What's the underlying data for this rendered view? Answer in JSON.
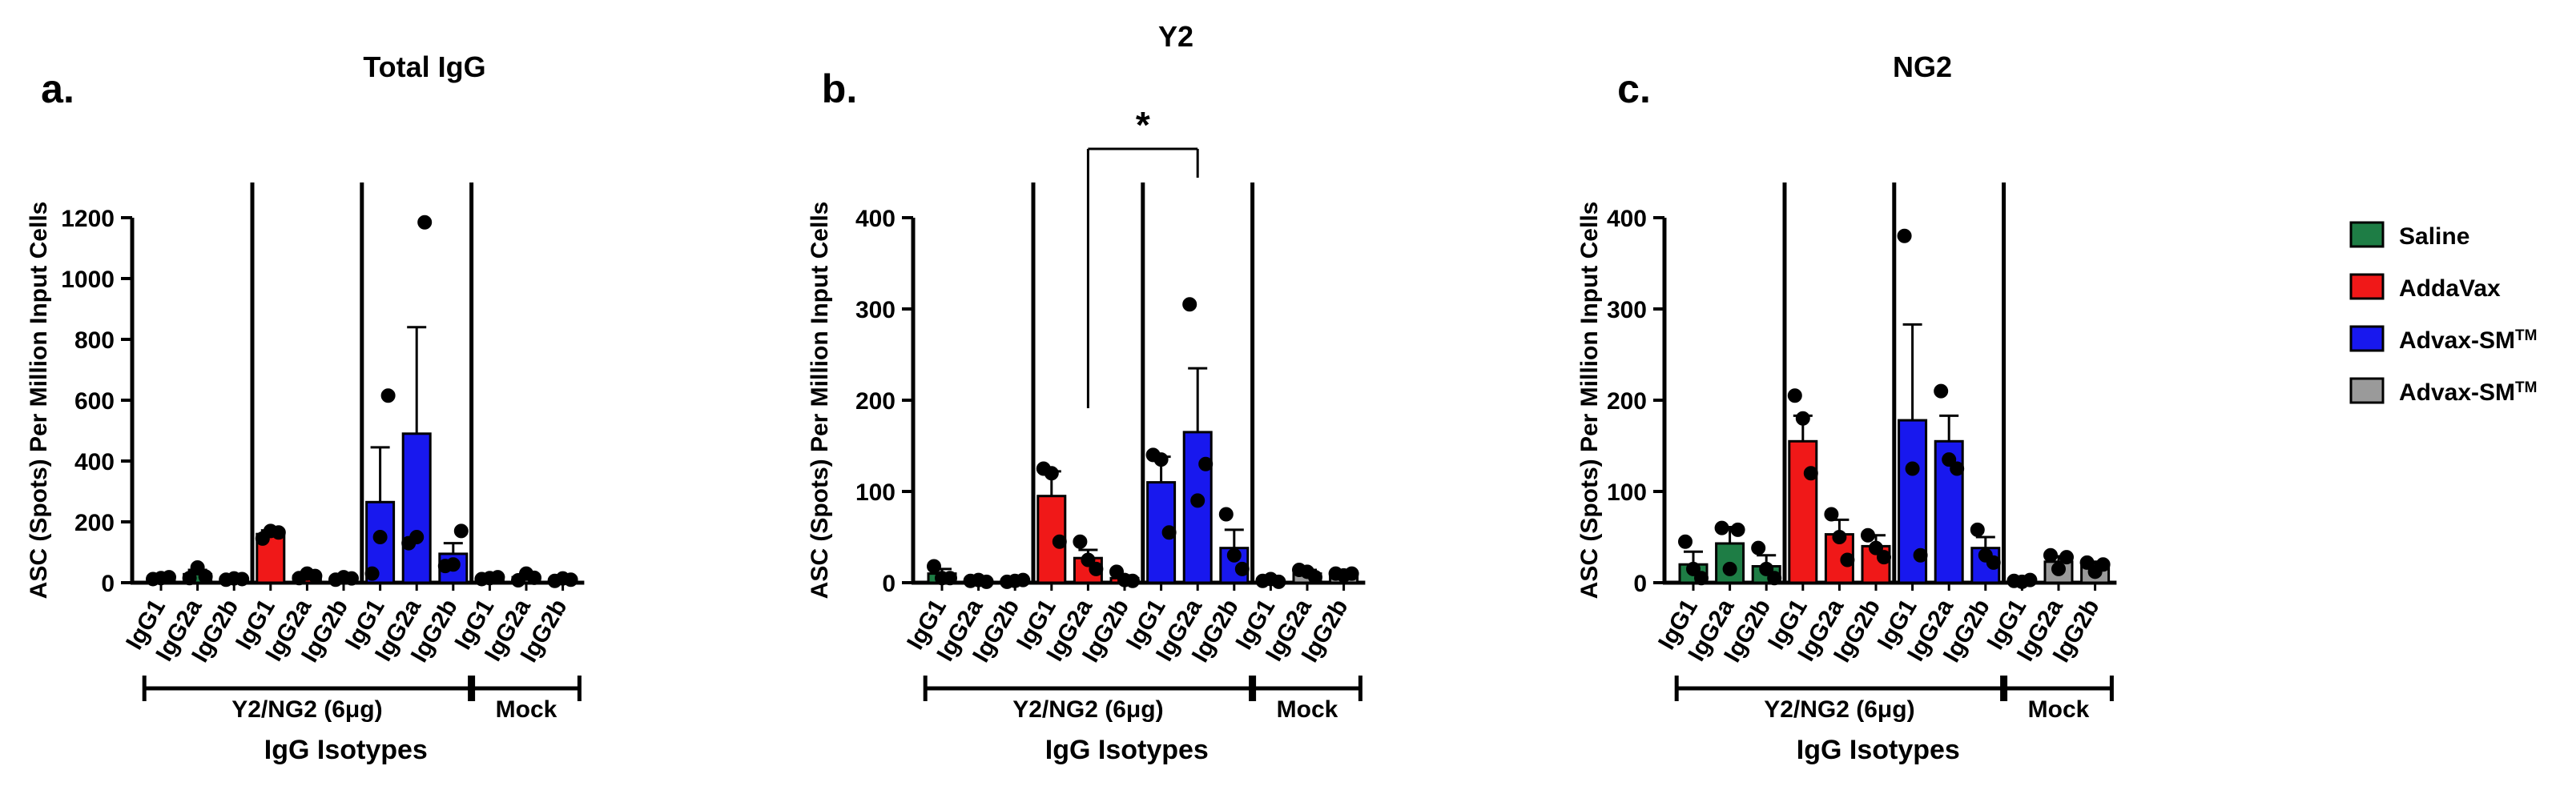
{
  "figure_title": "Y2",
  "colors": {
    "saline": "#1e7d45",
    "addavax": "#f01818",
    "advax": "#1818ee",
    "mock": "#9a9a9a"
  },
  "legend": [
    {
      "label": "Saline",
      "sup": "",
      "color_key": "saline"
    },
    {
      "label": "AddaVax",
      "sup": "",
      "color_key": "addavax"
    },
    {
      "label": "Advax-SM",
      "sup": "TM",
      "color_key": "advax"
    },
    {
      "label": "Advax-SM",
      "sup": "TM",
      "color_key": "mock"
    }
  ],
  "chart_data": [
    {
      "type": "bar",
      "panel_label": "a.",
      "title": "Total IgG",
      "ylabel": "ASC (Spots) Per Million Input Cells",
      "xlabel": "IgG Isotypes",
      "ylim": [
        0,
        1200
      ],
      "yticks": [
        0,
        200,
        400,
        600,
        800,
        1000,
        1200
      ],
      "categories": [
        "IgG1",
        "IgG2a",
        "IgG2b",
        "IgG1",
        "IgG2a",
        "IgG2b",
        "IgG1",
        "IgG2a",
        "IgG2b",
        "IgG1",
        "IgG2a",
        "IgG2b"
      ],
      "group_labels": [
        {
          "label": "Y2/NG2 (6μg)",
          "from": 0,
          "to": 8
        },
        {
          "label": "Mock",
          "from": 9,
          "to": 11
        }
      ],
      "separators_after": [
        2,
        5,
        8
      ],
      "bar_colors": [
        "saline",
        "saline",
        "saline",
        "addavax",
        "addavax",
        "addavax",
        "advax",
        "advax",
        "advax",
        "mock",
        "mock",
        "mock"
      ],
      "values": [
        15,
        28,
        12,
        160,
        22,
        14,
        265,
        490,
        95,
        15,
        18,
        10
      ],
      "errors": [
        4,
        14,
        4,
        12,
        8,
        4,
        180,
        350,
        35,
        3,
        8,
        3
      ],
      "points": [
        [
          12,
          15,
          18
        ],
        [
          15,
          50,
          20
        ],
        [
          10,
          14,
          12
        ],
        [
          145,
          170,
          165
        ],
        [
          15,
          30,
          22
        ],
        [
          10,
          18,
          14
        ],
        [
          30,
          150,
          615
        ],
        [
          130,
          150,
          1185
        ],
        [
          55,
          60,
          170
        ],
        [
          12,
          15,
          18
        ],
        [
          8,
          30,
          16
        ],
        [
          6,
          14,
          10
        ]
      ],
      "significance": []
    },
    {
      "type": "bar",
      "panel_label": "b.",
      "title": "",
      "ylabel": "ASC (Spots) Per Million Input Cells",
      "xlabel": "IgG Isotypes",
      "ylim": [
        0,
        400
      ],
      "yticks": [
        0,
        100,
        200,
        300,
        400
      ],
      "categories": [
        "IgG1",
        "IgG2a",
        "IgG2b",
        "IgG1",
        "IgG2a",
        "IgG2b",
        "IgG1",
        "IgG2a",
        "IgG2b",
        "IgG1",
        "IgG2a",
        "IgG2b"
      ],
      "group_labels": [
        {
          "label": "Y2/NG2 (6μg)",
          "from": 0,
          "to": 8
        },
        {
          "label": "Mock",
          "from": 9,
          "to": 11
        }
      ],
      "separators_after": [
        2,
        5,
        8
      ],
      "bar_colors": [
        "saline",
        "saline",
        "saline",
        "addavax",
        "addavax",
        "addavax",
        "advax",
        "advax",
        "advax",
        "mock",
        "mock",
        "mock"
      ],
      "values": [
        10,
        2,
        2,
        95,
        27,
        5,
        110,
        165,
        38,
        2,
        10,
        9
      ],
      "errors": [
        5,
        1,
        1,
        27,
        9,
        3,
        28,
        70,
        20,
        1,
        4,
        2
      ],
      "points": [
        [
          18,
          5,
          5
        ],
        [
          2,
          3,
          1
        ],
        [
          1,
          2,
          3
        ],
        [
          125,
          120,
          45
        ],
        [
          45,
          25,
          15
        ],
        [
          12,
          3,
          2
        ],
        [
          140,
          135,
          55
        ],
        [
          305,
          90,
          130
        ],
        [
          75,
          30,
          15
        ],
        [
          2,
          4,
          1
        ],
        [
          14,
          12,
          6
        ],
        [
          10,
          8,
          10
        ]
      ],
      "significance": [
        {
          "from": 4,
          "to": 7,
          "label": "*"
        }
      ]
    },
    {
      "type": "bar",
      "panel_label": "c.",
      "title": "NG2",
      "ylabel": "ASC (Spots) Per Million Input Cells",
      "xlabel": "IgG Isotypes",
      "ylim": [
        0,
        400
      ],
      "yticks": [
        0,
        100,
        200,
        300,
        400
      ],
      "categories": [
        "IgG1",
        "IgG2a",
        "IgG2b",
        "IgG1",
        "IgG2a",
        "IgG2b",
        "IgG1",
        "IgG2a",
        "IgG2b",
        "IgG1",
        "IgG2a",
        "IgG2b"
      ],
      "group_labels": [
        {
          "label": "Y2/NG2 (6μg)",
          "from": 0,
          "to": 8
        },
        {
          "label": "Mock",
          "from": 9,
          "to": 11
        }
      ],
      "separators_after": [
        2,
        5,
        8
      ],
      "bar_colors": [
        "saline",
        "saline",
        "saline",
        "addavax",
        "addavax",
        "addavax",
        "advax",
        "advax",
        "advax",
        "mock",
        "mock",
        "mock"
      ],
      "values": [
        20,
        43,
        18,
        155,
        53,
        40,
        178,
        155,
        38,
        2,
        23,
        18
      ],
      "errors": [
        14,
        18,
        12,
        28,
        16,
        12,
        105,
        28,
        12,
        1,
        6,
        5
      ],
      "points": [
        [
          45,
          15,
          5
        ],
        [
          60,
          15,
          58
        ],
        [
          38,
          15,
          5
        ],
        [
          205,
          180,
          120
        ],
        [
          75,
          50,
          25
        ],
        [
          52,
          38,
          28
        ],
        [
          380,
          125,
          30
        ],
        [
          210,
          135,
          125
        ],
        [
          58,
          30,
          22
        ],
        [
          2,
          1,
          3
        ],
        [
          30,
          15,
          28
        ],
        [
          22,
          12,
          20
        ]
      ],
      "significance": []
    }
  ]
}
